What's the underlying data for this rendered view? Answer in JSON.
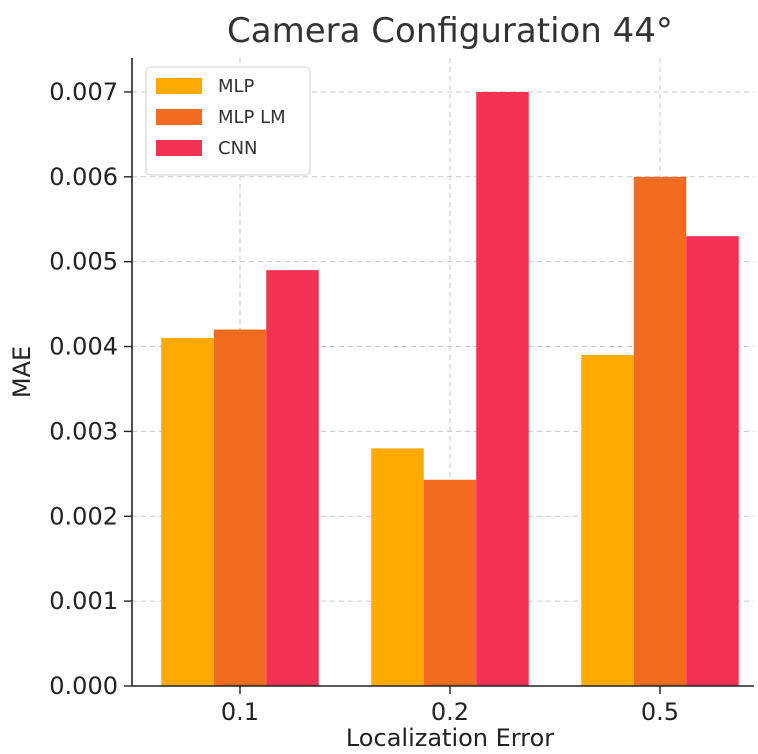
{
  "chart_data": {
    "type": "bar",
    "title": "Camera Configuration 44°",
    "xlabel": "Localization Error",
    "ylabel": "MAE",
    "categories": [
      "0.1",
      "0.2",
      "0.5"
    ],
    "ylim": [
      0,
      0.0074
    ],
    "yticks": [
      "0.000",
      "0.001",
      "0.002",
      "0.003",
      "0.004",
      "0.005",
      "0.006",
      "0.007"
    ],
    "yticks_values": [
      0,
      0.001,
      0.002,
      0.003,
      0.004,
      0.005,
      0.006,
      0.007
    ],
    "grid": true,
    "legend_position": "top-left",
    "series": [
      {
        "name": "MLP",
        "color": "#FFAA00",
        "values": [
          0.0041,
          0.0028,
          0.0039
        ]
      },
      {
        "name": "MLP LM",
        "color": "#F26B21",
        "values": [
          0.0042,
          0.00243,
          0.006
        ]
      },
      {
        "name": "CNN",
        "color": "#F23255",
        "values": [
          0.0049,
          0.007,
          0.0053
        ]
      }
    ]
  }
}
